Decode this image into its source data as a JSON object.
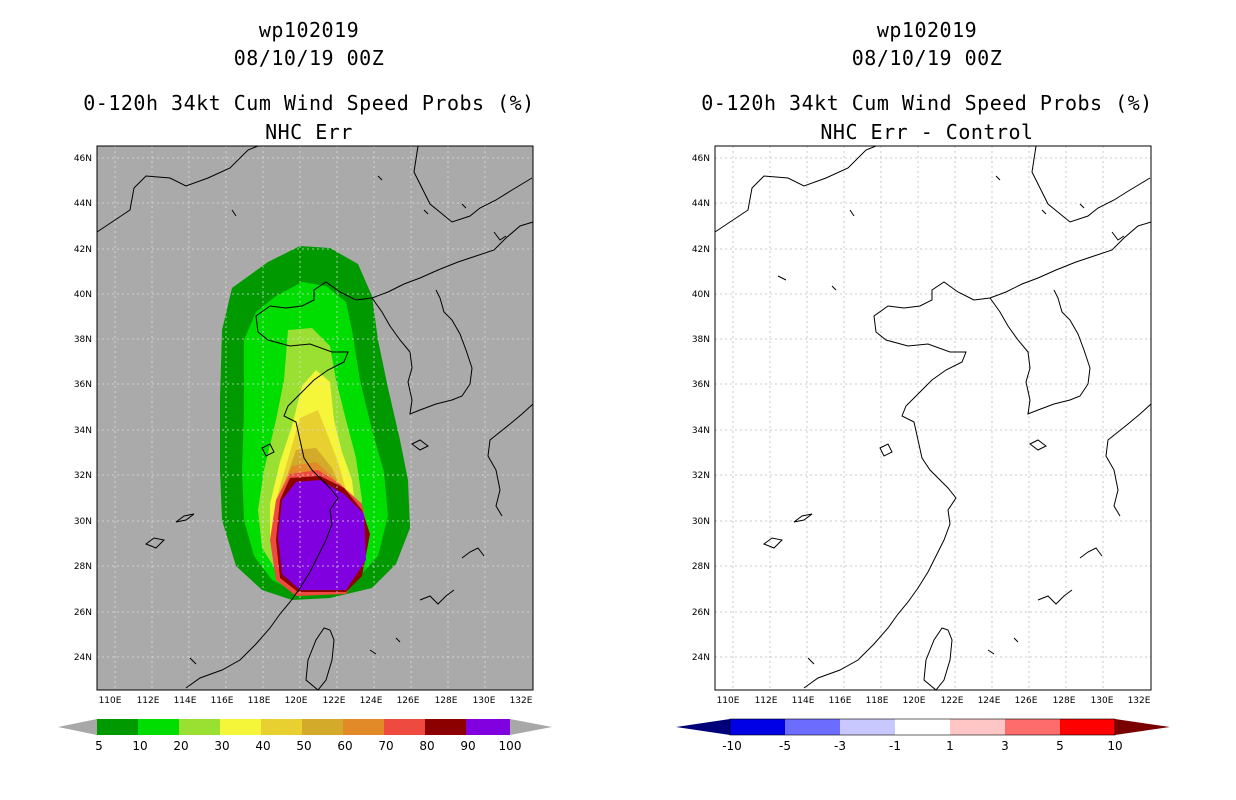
{
  "left_panel": {
    "storm_id": "wp102019",
    "datetime": "08/10/19 00Z",
    "product": "0-120h 34kt Cum Wind Speed Probs (%)",
    "subtitle": "NHC Err",
    "background_color": "#aaaaaa",
    "colorbar": {
      "labels": [
        "5",
        "10",
        "20",
        "30",
        "40",
        "50",
        "60",
        "70",
        "80",
        "90",
        "100"
      ],
      "colors": [
        "#009900",
        "#00dd00",
        "#99e033",
        "#f5f53a",
        "#e8d030",
        "#d4aa2a",
        "#e28a28",
        "#ee4a40",
        "#8c0000",
        "#8000e0"
      ],
      "end_arrow_color": "#a8a8a8"
    }
  },
  "right_panel": {
    "storm_id": "wp102019",
    "datetime": "08/10/19 00Z",
    "product": "0-120h 34kt Cum Wind Speed Probs (%)",
    "subtitle": "NHC Err - Control",
    "background_color": "#ffffff",
    "colorbar": {
      "labels": [
        "-10",
        "-5",
        "-3",
        "-1",
        "1",
        "3",
        "5",
        "10"
      ],
      "colors": [
        "#0000e6",
        "#6c6cff",
        "#c8c8ff",
        "#ffffff",
        "#ffc6c6",
        "#ff6c6c",
        "#ff0000"
      ],
      "left_arrow_color": "#00007a",
      "right_arrow_color": "#7a0000"
    }
  },
  "axes": {
    "lat_labels": [
      "46N",
      "44N",
      "42N",
      "40N",
      "38N",
      "36N",
      "34N",
      "32N",
      "30N",
      "28N",
      "26N",
      "24N"
    ],
    "lon_labels": [
      "110E",
      "112E",
      "114E",
      "116E",
      "118E",
      "120E",
      "122E",
      "124E",
      "126E",
      "128E",
      "130E",
      "132E"
    ]
  }
}
